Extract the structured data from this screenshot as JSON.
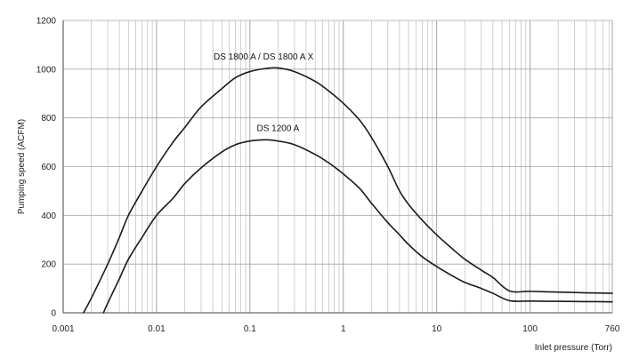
{
  "chart_data": {
    "type": "line",
    "title": "",
    "xlabel": "Inlet pressure (Torr)",
    "ylabel": "Pumping speed (ACFM)",
    "x_scale": "log",
    "xlim": [
      0.001,
      760
    ],
    "ylim": [
      0,
      1200
    ],
    "grid": true,
    "x_ticks": [
      0.001,
      0.01,
      0.1,
      1,
      10,
      100,
      760
    ],
    "x_tick_labels": [
      "0.001",
      "0.01",
      "0.1",
      "1",
      "10",
      "100",
      "760"
    ],
    "y_ticks": [
      0,
      200,
      400,
      600,
      800,
      1000,
      1200
    ],
    "y_tick_labels": [
      "0",
      "200",
      "400",
      "600",
      "800",
      "1000",
      "1200"
    ],
    "series": [
      {
        "name": "DS 1800 A / DS 1800 A X",
        "points": [
          [
            0.00165,
            0
          ],
          [
            0.002,
            60
          ],
          [
            0.003,
            200
          ],
          [
            0.004,
            310
          ],
          [
            0.005,
            400
          ],
          [
            0.007,
            500
          ],
          [
            0.01,
            600
          ],
          [
            0.015,
            700
          ],
          [
            0.02,
            760
          ],
          [
            0.03,
            845
          ],
          [
            0.05,
            920
          ],
          [
            0.07,
            965
          ],
          [
            0.1,
            990
          ],
          [
            0.15,
            1003
          ],
          [
            0.2,
            1005
          ],
          [
            0.3,
            990
          ],
          [
            0.5,
            950
          ],
          [
            0.7,
            910
          ],
          [
            1,
            860
          ],
          [
            1.5,
            790
          ],
          [
            2,
            720
          ],
          [
            3,
            600
          ],
          [
            4,
            500
          ],
          [
            5,
            445
          ],
          [
            7,
            380
          ],
          [
            10,
            320
          ],
          [
            15,
            260
          ],
          [
            20,
            220
          ],
          [
            30,
            175
          ],
          [
            40,
            145
          ],
          [
            60,
            90
          ],
          [
            100,
            88
          ],
          [
            200,
            85
          ],
          [
            400,
            82
          ],
          [
            760,
            80
          ]
        ],
        "color": "#1a1a1a"
      },
      {
        "name": "DS 1200 A",
        "points": [
          [
            0.0027,
            0
          ],
          [
            0.003,
            40
          ],
          [
            0.004,
            140
          ],
          [
            0.005,
            220
          ],
          [
            0.007,
            310
          ],
          [
            0.01,
            400
          ],
          [
            0.015,
            470
          ],
          [
            0.02,
            530
          ],
          [
            0.03,
            595
          ],
          [
            0.05,
            660
          ],
          [
            0.07,
            690
          ],
          [
            0.1,
            705
          ],
          [
            0.15,
            710
          ],
          [
            0.2,
            705
          ],
          [
            0.3,
            690
          ],
          [
            0.5,
            650
          ],
          [
            0.7,
            615
          ],
          [
            1,
            570
          ],
          [
            1.5,
            510
          ],
          [
            2,
            450
          ],
          [
            3,
            370
          ],
          [
            4,
            320
          ],
          [
            5,
            280
          ],
          [
            7,
            230
          ],
          [
            10,
            190
          ],
          [
            15,
            150
          ],
          [
            20,
            125
          ],
          [
            30,
            100
          ],
          [
            40,
            80
          ],
          [
            60,
            50
          ],
          [
            100,
            48
          ],
          [
            200,
            47
          ],
          [
            400,
            46
          ],
          [
            760,
            45
          ]
        ],
        "color": "#1a1a1a"
      }
    ],
    "annotations": [
      {
        "text": "DS 1800 A / DS 1800 A X",
        "x": 0.14,
        "y": 1040
      },
      {
        "text": "DS 1200 A",
        "x": 0.2,
        "y": 745
      }
    ]
  }
}
